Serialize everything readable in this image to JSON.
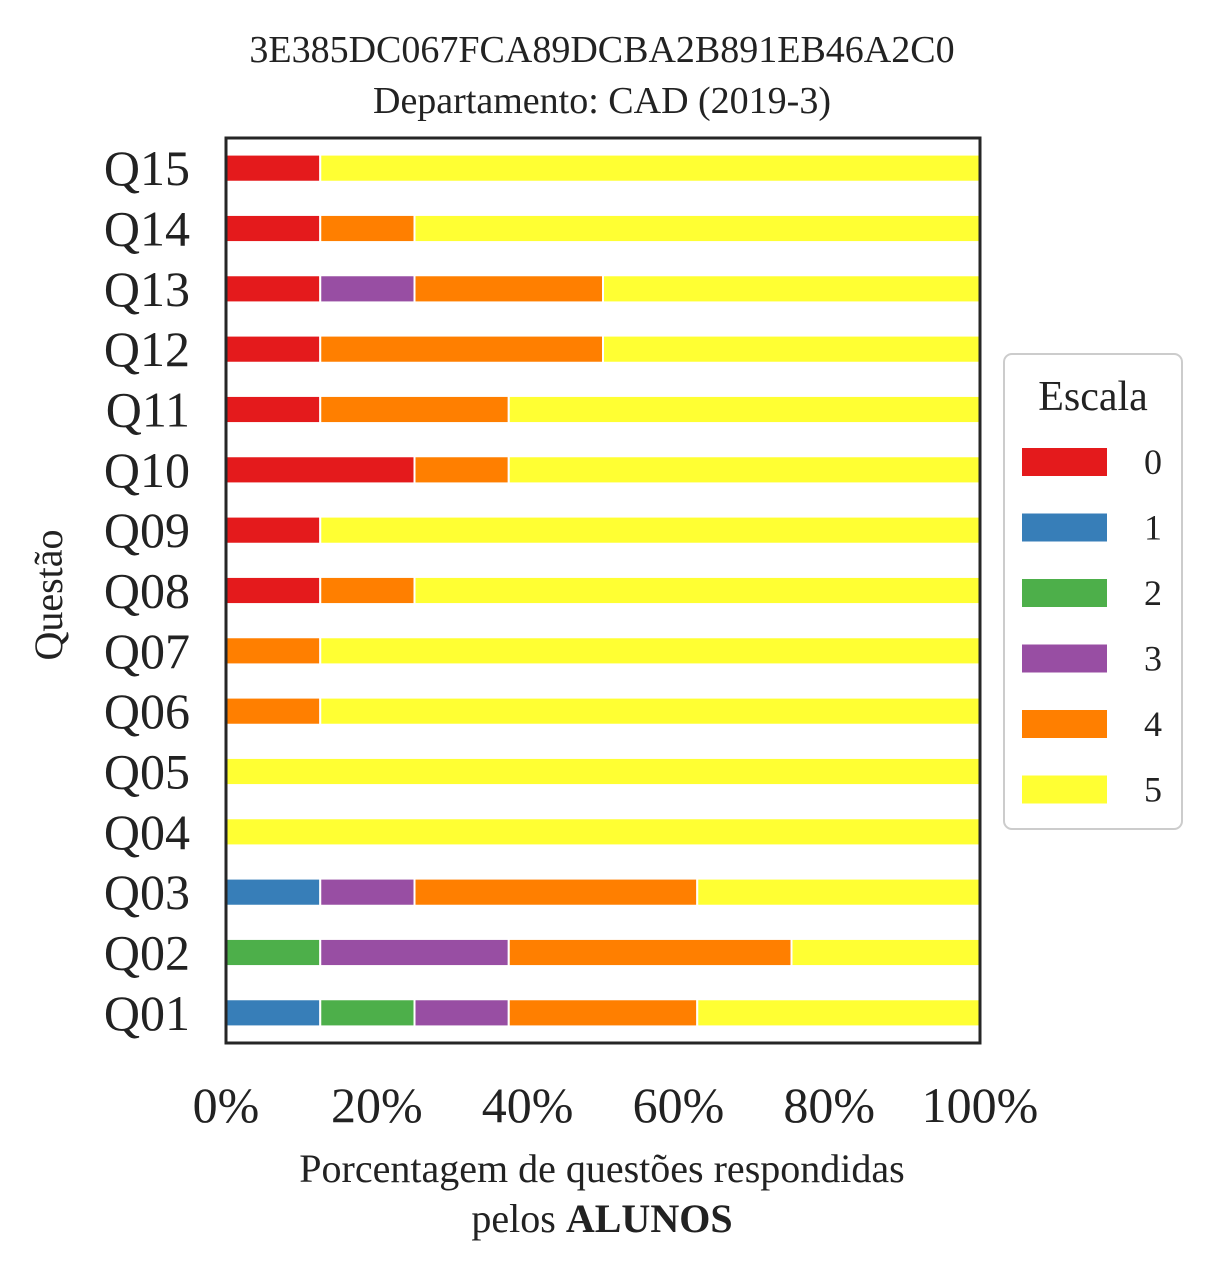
{
  "chart_data": {
    "type": "bar",
    "orientation": "horizontal",
    "stacked": true,
    "title": "3E385DC067FCA89DCBA2B891EB46A2C0",
    "subtitle": "Departamento: CAD (2019-3)",
    "xlabel_line1": "Porcentagem de questões respondidas",
    "xlabel_line2_prefix": "pelos ",
    "xlabel_line2_bold": "ALUNOS",
    "ylabel": "Questão",
    "xlim": [
      0,
      100
    ],
    "xticks": [
      "0%",
      "20%",
      "40%",
      "60%",
      "80%",
      "100%"
    ],
    "xtick_values": [
      0,
      20,
      40,
      60,
      80,
      100
    ],
    "categories": [
      "Q01",
      "Q02",
      "Q03",
      "Q04",
      "Q05",
      "Q06",
      "Q07",
      "Q08",
      "Q09",
      "Q10",
      "Q11",
      "Q12",
      "Q13",
      "Q14",
      "Q15"
    ],
    "legend": {
      "title": "Escala",
      "placement": "center-right outside"
    },
    "series": [
      {
        "name": "0",
        "color": "#e41a1c",
        "values": [
          0,
          0,
          0,
          0,
          0,
          0,
          0,
          12.5,
          12.5,
          25,
          12.5,
          12.5,
          12.5,
          12.5,
          12.5
        ]
      },
      {
        "name": "1",
        "color": "#377eb8",
        "values": [
          12.5,
          0,
          12.5,
          0,
          0,
          0,
          0,
          0,
          0,
          0,
          0,
          0,
          0,
          0,
          0
        ]
      },
      {
        "name": "2",
        "color": "#4daf4a",
        "values": [
          12.5,
          12.5,
          0,
          0,
          0,
          0,
          0,
          0,
          0,
          0,
          0,
          0,
          0,
          0,
          0
        ]
      },
      {
        "name": "3",
        "color": "#984ea3",
        "values": [
          12.5,
          25,
          12.5,
          0,
          0,
          0,
          0,
          0,
          0,
          0,
          0,
          0,
          12.5,
          0,
          0
        ]
      },
      {
        "name": "4",
        "color": "#ff7f00",
        "values": [
          25,
          37.5,
          37.5,
          0,
          0,
          12.5,
          12.5,
          12.5,
          0,
          12.5,
          25,
          37.5,
          25,
          12.5,
          0
        ]
      },
      {
        "name": "5",
        "color": "#ffff33",
        "values": [
          37.5,
          25,
          37.5,
          100,
          100,
          87.5,
          87.5,
          75,
          87.5,
          62.5,
          62.5,
          50,
          50,
          75,
          87.5
        ]
      }
    ]
  }
}
